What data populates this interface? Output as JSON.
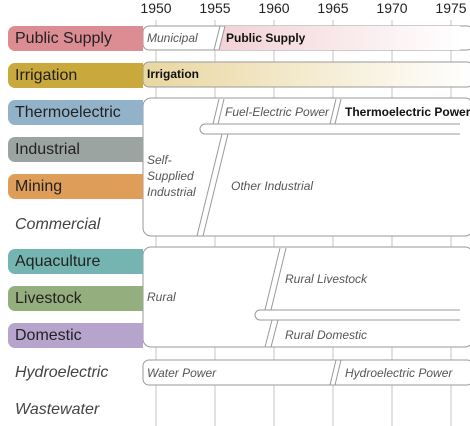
{
  "axis": {
    "years": [
      "1950",
      "1955",
      "1960",
      "1965",
      "1970",
      "1975"
    ]
  },
  "categories": [
    {
      "label": "Public Supply",
      "color": "#dc8c93"
    },
    {
      "label": "Irrigation",
      "color": "#c9a83c"
    },
    {
      "label": "Thermoelectric",
      "color": "#92b2c9"
    },
    {
      "label": "Industrial",
      "color": "#9ca4a1"
    },
    {
      "label": "Mining",
      "color": "#de9d58"
    },
    {
      "label": "Commercial",
      "color": null
    },
    {
      "label": "Aquaculture",
      "color": "#74b4b1"
    },
    {
      "label": "Livestock",
      "color": "#94ae7e"
    },
    {
      "label": "Domestic",
      "color": "#b6a4cd"
    },
    {
      "label": "Hydroelectric",
      "color": null
    },
    {
      "label": "Wastewater",
      "color": null
    }
  ],
  "periods": {
    "public_supply": [
      "Municipal",
      "Public Supply"
    ],
    "irrigation": [
      "Irrigation"
    ],
    "industrial": [
      "Self-Supplied Industrial",
      "Fuel-Electric Power",
      "Thermoelectric Power",
      "Other Industrial"
    ],
    "rural": [
      "Rural",
      "Rural Livestock",
      "Rural Domestic"
    ],
    "hydro": [
      "Water Power",
      "Hydroelectric Power"
    ]
  }
}
